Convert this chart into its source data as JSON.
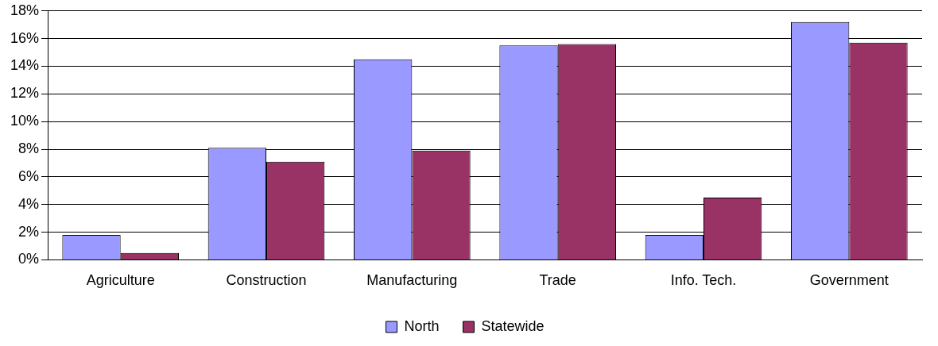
{
  "chart_data": {
    "type": "bar",
    "categories": [
      "Agriculture",
      "Construction",
      "Manufacturing",
      "Trade",
      "Info. Tech.",
      "Government"
    ],
    "series": [
      {
        "name": "North",
        "color": "#9999ff",
        "values": [
          1.8,
          8.1,
          14.5,
          15.5,
          1.8,
          17.2
        ]
      },
      {
        "name": "Statewide",
        "color": "#993366",
        "values": [
          0.5,
          7.1,
          7.9,
          15.6,
          4.5,
          15.7
        ]
      }
    ],
    "ylim": [
      0,
      18
    ],
    "yticks": [
      {
        "value": 0,
        "label": "0%"
      },
      {
        "value": 2,
        "label": "2%"
      },
      {
        "value": 4,
        "label": "4%"
      },
      {
        "value": 6,
        "label": "6%"
      },
      {
        "value": 8,
        "label": "8%"
      },
      {
        "value": 10,
        "label": "10%"
      },
      {
        "value": 12,
        "label": "12%"
      },
      {
        "value": 14,
        "label": "14%"
      },
      {
        "value": 16,
        "label": "16%"
      },
      {
        "value": 18,
        "label": "18%"
      }
    ],
    "grid": "y",
    "legend": "bottom"
  }
}
